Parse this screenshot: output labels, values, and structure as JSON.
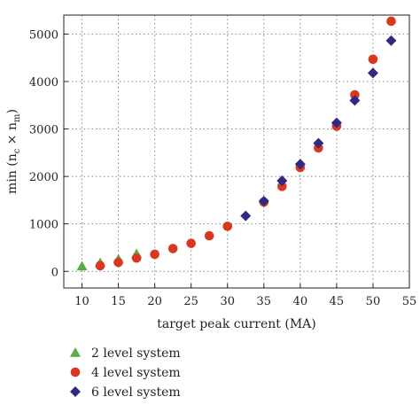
{
  "chart_data": {
    "type": "scatter",
    "xlabel": "target peak current (MA)",
    "ylabel_parts": {
      "pre": "min (n",
      "sub1": "c",
      "mid": " × n",
      "sub2": "m",
      "post": ")"
    },
    "xlim": [
      7.5,
      55
    ],
    "ylim": [
      -350,
      5400
    ],
    "xticks": [
      10,
      15,
      20,
      25,
      30,
      35,
      40,
      45,
      50,
      55
    ],
    "xtick_labels": [
      "10",
      "15",
      "20",
      "25",
      "30",
      "35",
      "40",
      "45",
      "50",
      "55"
    ],
    "yticks": [
      0,
      1000,
      2000,
      3000,
      4000,
      5000
    ],
    "ytick_labels": [
      "0",
      "1000",
      "2000",
      "3000",
      "4000",
      "5000"
    ],
    "grid": "dotted",
    "legend_position": "bottom",
    "series": [
      {
        "name": "2 level system",
        "marker": "triangle",
        "color": "#5aac44",
        "points": [
          [
            10,
            110
          ],
          [
            12.5,
            180
          ],
          [
            15,
            260
          ],
          [
            17.5,
            370
          ]
        ]
      },
      {
        "name": "4 level system",
        "marker": "circle",
        "color": "#d9381e",
        "points": [
          [
            12.5,
            120
          ],
          [
            15,
            190
          ],
          [
            17.5,
            280
          ],
          [
            20,
            360
          ],
          [
            22.5,
            480
          ],
          [
            25,
            590
          ],
          [
            27.5,
            750
          ],
          [
            30,
            950
          ],
          [
            35,
            1460
          ],
          [
            37.5,
            1790
          ],
          [
            40,
            2190
          ],
          [
            42.5,
            2600
          ],
          [
            45,
            3060
          ],
          [
            47.5,
            3720
          ],
          [
            50,
            4470
          ],
          [
            52.5,
            5270
          ]
        ]
      },
      {
        "name": "6 level system",
        "marker": "diamond",
        "color": "#2e2a86",
        "points": [
          [
            32.5,
            1170
          ],
          [
            35,
            1480
          ],
          [
            37.5,
            1910
          ],
          [
            40,
            2260
          ],
          [
            42.5,
            2700
          ],
          [
            45,
            3130
          ],
          [
            47.5,
            3600
          ],
          [
            50,
            4180
          ],
          [
            52.5,
            4860
          ]
        ]
      }
    ]
  }
}
